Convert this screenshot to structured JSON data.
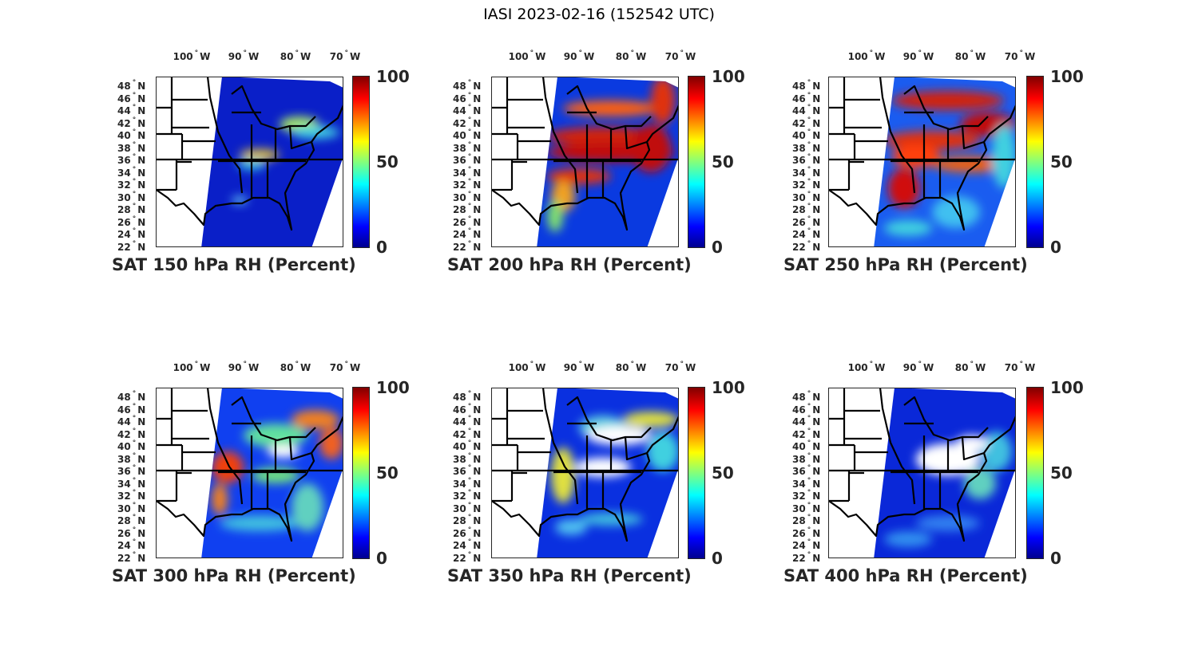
{
  "title": "IASI 2023-02-16 (152542 UTC)",
  "lon_ticks": [
    "100",
    "90",
    "80",
    "70"
  ],
  "lon_suffix": "W",
  "lat_ticks": [
    "48",
    "46",
    "44",
    "42",
    "40",
    "38",
    "36",
    "34",
    "32",
    "30",
    "28",
    "26",
    "24",
    "22"
  ],
  "lat_suffix": "N",
  "degree_symbol": "°",
  "colorbar_ticks": [
    "100",
    "50",
    "0"
  ],
  "colormap": "jet",
  "panels": [
    {
      "label": "SAT 150 hPa RH (Percent)",
      "base_color": "#0a1fc8"
    },
    {
      "label": "SAT 200 hPa RH (Percent)",
      "base_color": "#0a3ae0"
    },
    {
      "label": "SAT 250 hPa RH (Percent)",
      "base_color": "#1a5cf0"
    },
    {
      "label": "SAT 300 hPa RH (Percent)",
      "base_color": "#1040f0"
    },
    {
      "label": "SAT 350 hPa RH (Percent)",
      "base_color": "#0a30e0"
    },
    {
      "label": "SAT 400 hPa RH (Percent)",
      "base_color": "#0a28d8"
    }
  ]
}
